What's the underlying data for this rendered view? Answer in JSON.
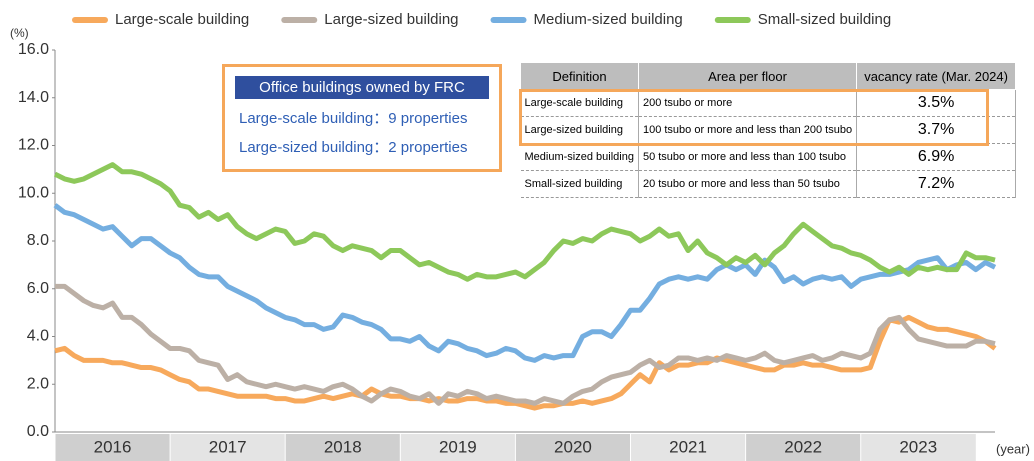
{
  "chart_data": {
    "type": "line",
    "y_label": "(%)",
    "x_label": "(year)",
    "categories": [
      null,
      null,
      null,
      null,
      null,
      null,
      "2016",
      null,
      null,
      null,
      null,
      null,
      null,
      null,
      null,
      null,
      null,
      null,
      "2017",
      null,
      null,
      null,
      null,
      null,
      null,
      null,
      null,
      null,
      null,
      null,
      "2018",
      null,
      null,
      null,
      null,
      null,
      null,
      null,
      null,
      null,
      null,
      null,
      "2019",
      null,
      null,
      null,
      null,
      null,
      null,
      null,
      null,
      null,
      null,
      null,
      "2020",
      null,
      null,
      null,
      null,
      null,
      null,
      null,
      null,
      null,
      null,
      null,
      "2021",
      null,
      null,
      null,
      null,
      null,
      null,
      null,
      null,
      null,
      null,
      null,
      "2022",
      null,
      null,
      null,
      null,
      null,
      null,
      null,
      null,
      null,
      null,
      null,
      "2023",
      null,
      null,
      null,
      null,
      null,
      null,
      null,
      null
    ],
    "ylim": [
      0,
      16
    ],
    "yticks": [
      {
        "value": 0,
        "label": "0.0"
      },
      {
        "value": 2,
        "label": "2.0"
      },
      {
        "value": 4,
        "label": "4.0"
      },
      {
        "value": 6,
        "label": "6.0"
      },
      {
        "value": 8,
        "label": "8.0"
      },
      {
        "value": 10,
        "label": "10.0"
      },
      {
        "value": 12,
        "label": "12.0"
      },
      {
        "value": 14,
        "label": "14.0"
      },
      {
        "value": 16,
        "label": "16.0"
      }
    ],
    "series": [
      {
        "name": "Large-scale building",
        "color": "#f7a95c",
        "values": [
          3.4,
          3.5,
          3.2,
          3.0,
          3.0,
          3.0,
          2.9,
          2.9,
          2.8,
          2.7,
          2.7,
          2.6,
          2.4,
          2.2,
          2.1,
          1.8,
          1.8,
          1.7,
          1.6,
          1.5,
          1.5,
          1.5,
          1.5,
          1.4,
          1.4,
          1.3,
          1.3,
          1.4,
          1.5,
          1.4,
          1.5,
          1.6,
          1.5,
          1.8,
          1.6,
          1.5,
          1.5,
          1.4,
          1.4,
          1.3,
          1.4,
          1.3,
          1.3,
          1.4,
          1.4,
          1.3,
          1.3,
          1.2,
          1.2,
          1.1,
          1.0,
          1.1,
          1.1,
          1.2,
          1.2,
          1.3,
          1.2,
          1.3,
          1.4,
          1.6,
          2.0,
          2.4,
          2.1,
          2.9,
          2.6,
          2.8,
          2.8,
          2.9,
          2.9,
          3.1,
          3.0,
          2.9,
          2.8,
          2.7,
          2.6,
          2.6,
          2.8,
          2.8,
          2.9,
          2.8,
          2.8,
          2.7,
          2.6,
          2.6,
          2.6,
          2.7,
          3.8,
          4.7,
          4.6,
          4.8,
          4.6,
          4.4,
          4.3,
          4.3,
          4.2,
          4.1,
          4.0,
          3.8,
          3.5
        ]
      },
      {
        "name": "Large-sized building",
        "color": "#bcb0a6",
        "values": [
          6.1,
          6.1,
          5.8,
          5.5,
          5.3,
          5.2,
          5.4,
          4.8,
          4.8,
          4.5,
          4.1,
          3.8,
          3.5,
          3.5,
          3.4,
          3.0,
          2.9,
          2.8,
          2.2,
          2.4,
          2.1,
          2.0,
          1.9,
          2.0,
          1.9,
          1.8,
          1.9,
          1.8,
          1.7,
          1.9,
          2.0,
          1.8,
          1.5,
          1.3,
          1.6,
          1.8,
          1.7,
          1.5,
          1.4,
          1.6,
          1.2,
          1.6,
          1.5,
          1.7,
          1.6,
          1.4,
          1.5,
          1.4,
          1.3,
          1.3,
          1.2,
          1.4,
          1.3,
          1.2,
          1.5,
          1.7,
          1.8,
          2.1,
          2.3,
          2.4,
          2.5,
          2.8,
          3.0,
          2.7,
          2.8,
          3.1,
          3.1,
          3.0,
          3.1,
          3.0,
          3.2,
          3.1,
          3.0,
          3.1,
          3.3,
          3.0,
          2.9,
          3.0,
          3.1,
          3.2,
          3.0,
          3.1,
          3.3,
          3.2,
          3.1,
          3.3,
          4.3,
          4.7,
          4.8,
          4.3,
          3.9,
          3.8,
          3.7,
          3.6,
          3.6,
          3.6,
          3.8,
          3.8,
          3.7
        ]
      },
      {
        "name": "Medium-sized building",
        "color": "#74aee0",
        "values": [
          9.5,
          9.2,
          9.1,
          8.9,
          8.7,
          8.5,
          8.6,
          8.2,
          7.8,
          8.1,
          8.1,
          7.8,
          7.5,
          7.3,
          6.9,
          6.6,
          6.5,
          6.5,
          6.1,
          5.9,
          5.7,
          5.5,
          5.2,
          5.0,
          4.8,
          4.7,
          4.5,
          4.5,
          4.3,
          4.4,
          4.9,
          4.8,
          4.6,
          4.5,
          4.3,
          3.9,
          3.9,
          3.8,
          4.0,
          3.6,
          3.4,
          3.8,
          3.7,
          3.5,
          3.4,
          3.2,
          3.3,
          3.5,
          3.4,
          3.1,
          3.0,
          3.2,
          3.1,
          3.2,
          3.2,
          4.0,
          4.2,
          4.2,
          4.0,
          4.5,
          5.1,
          5.1,
          5.6,
          6.2,
          6.4,
          6.5,
          6.4,
          6.5,
          6.4,
          6.8,
          7.0,
          6.8,
          7.0,
          6.6,
          7.2,
          6.9,
          6.3,
          6.5,
          6.2,
          6.4,
          6.5,
          6.4,
          6.5,
          6.1,
          6.4,
          6.5,
          6.6,
          6.6,
          6.7,
          6.8,
          7.1,
          7.2,
          7.3,
          6.8,
          7.0,
          7.1,
          6.8,
          7.1,
          6.9
        ]
      },
      {
        "name": "Small-sized building",
        "color": "#8dc85a",
        "values": [
          10.8,
          10.6,
          10.5,
          10.6,
          10.8,
          11.0,
          11.2,
          10.9,
          10.9,
          10.8,
          10.6,
          10.4,
          10.1,
          9.5,
          9.4,
          9.0,
          9.2,
          8.9,
          9.1,
          8.6,
          8.3,
          8.1,
          8.3,
          8.5,
          8.4,
          7.9,
          8.0,
          8.3,
          8.2,
          7.8,
          7.6,
          7.8,
          7.7,
          7.6,
          7.3,
          7.6,
          7.6,
          7.3,
          7.0,
          7.1,
          6.9,
          6.7,
          6.6,
          6.4,
          6.6,
          6.5,
          6.5,
          6.6,
          6.7,
          6.5,
          6.8,
          7.1,
          7.6,
          8.0,
          7.9,
          8.1,
          8.0,
          8.3,
          8.5,
          8.4,
          8.3,
          8.0,
          8.2,
          8.5,
          8.2,
          8.3,
          7.6,
          8.0,
          7.5,
          7.3,
          7.0,
          7.3,
          7.1,
          7.4,
          7.0,
          7.5,
          7.8,
          8.3,
          8.7,
          8.4,
          8.1,
          7.8,
          7.7,
          7.5,
          7.4,
          7.2,
          6.9,
          6.7,
          6.9,
          6.6,
          6.9,
          6.8,
          6.9,
          6.8,
          6.8,
          7.5,
          7.3,
          7.3,
          7.2
        ]
      }
    ]
  },
  "callout": {
    "title": "Office buildings owned by FRC",
    "lines": [
      "Large-scale building：9 properties",
      "Large-sized building：2 properties"
    ]
  },
  "table": {
    "columns": [
      "Definition",
      "Area per floor",
      "vacancy rate (Mar. 2024)"
    ],
    "rows": [
      [
        "Large-scale building",
        "200 tsubo or more",
        "3.5%"
      ],
      [
        "Large-sized building",
        "100 tsubo or more and less than 200 tsubo",
        "3.7%"
      ],
      [
        "Medium-sized building",
        "50 tsubo or more and less than 100 tsubo",
        "6.9%"
      ],
      [
        "Small-sized building",
        "20 tsubo or more and less than 50 tsubo",
        "7.2%"
      ]
    ]
  }
}
